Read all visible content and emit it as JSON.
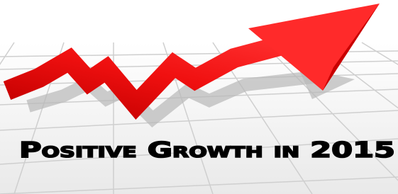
{
  "caption": {
    "text": "Positive Growth in 2015"
  }
}
